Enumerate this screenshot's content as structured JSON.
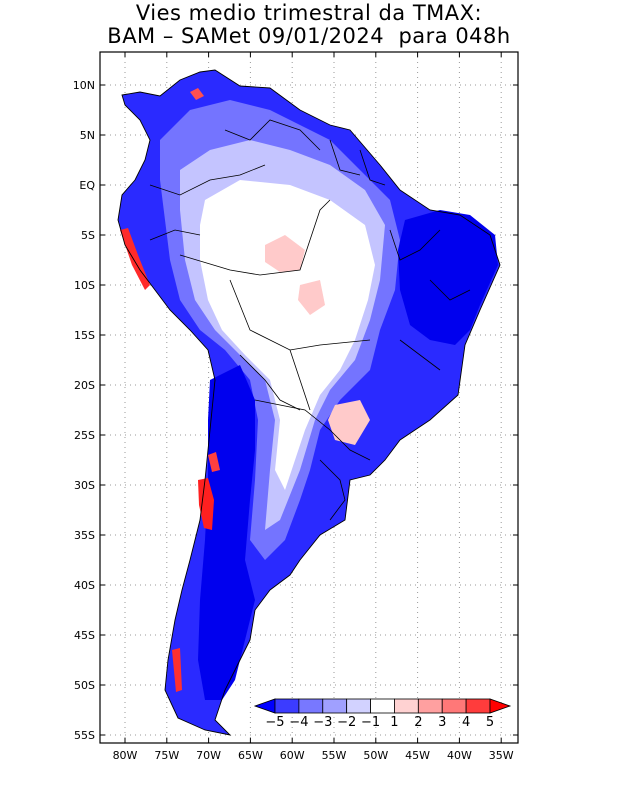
{
  "title": {
    "line1": "Vies medio trimestral da TMAX:",
    "line2": "BAM – SAMet 09/01/2024  para 048h"
  },
  "axes": {
    "lat_labels": [
      "10N",
      "5N",
      "EQ",
      "5S",
      "10S",
      "15S",
      "20S",
      "25S",
      "30S",
      "35S",
      "40S",
      "45S",
      "50S",
      "55S"
    ],
    "lon_labels": [
      "80W",
      "75W",
      "70W",
      "65W",
      "60W",
      "55W",
      "50W",
      "45W",
      "40W",
      "35W"
    ]
  },
  "colorbar": {
    "labels": [
      "−5",
      "−4",
      "−3",
      "−2",
      "−1",
      "1",
      "2",
      "3",
      "4",
      "5"
    ],
    "colors": [
      "#0000ff",
      "#3c3cff",
      "#7878ff",
      "#a0a0ff",
      "#d2d2ff",
      "#ffffff",
      "#ffd2d2",
      "#ffa0a0",
      "#ff7878",
      "#ff3c3c",
      "#ff0000"
    ]
  },
  "legend_colors": {
    "strong_cold": "#0000ff",
    "cold": "#5a5aff",
    "mild_cold": "#b4b4ff",
    "neutral": "#ffffff",
    "warm": "#ffc8c8",
    "hot": "#ff2020"
  }
}
